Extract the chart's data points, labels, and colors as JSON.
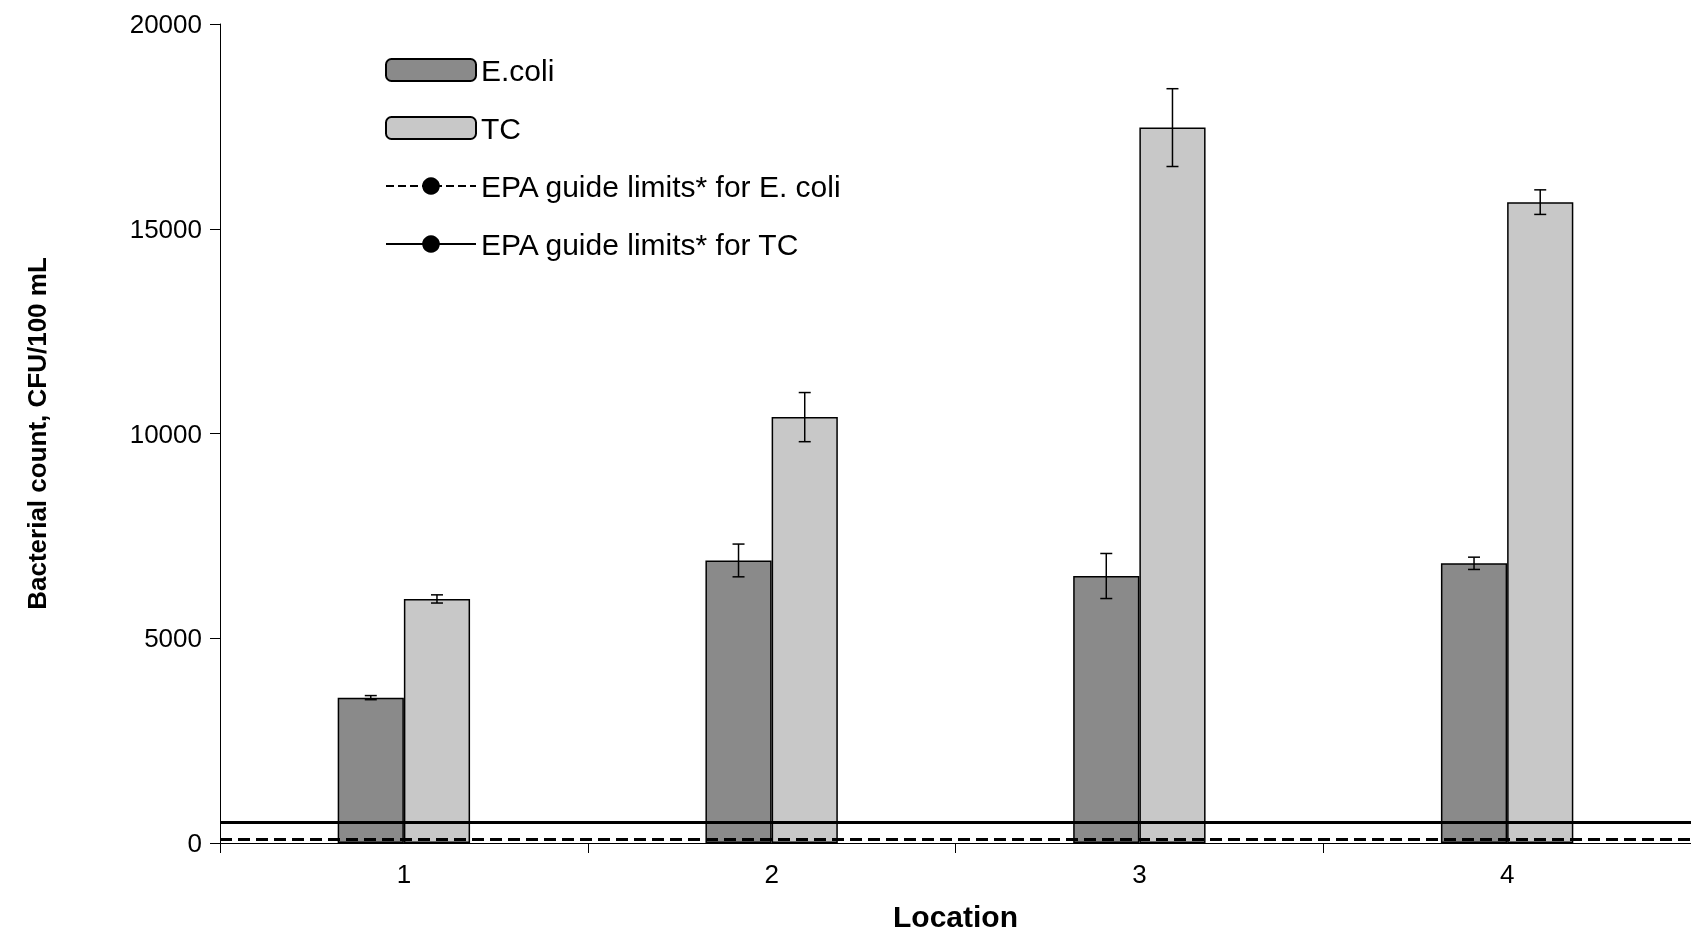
{
  "chart_data": {
    "type": "bar",
    "xlabel": "Location",
    "ylabel": "Bacterial count, CFU/100 mL",
    "categories": [
      "1",
      "2",
      "3",
      "4"
    ],
    "series": [
      {
        "name": "E.coli",
        "color": "#8a8a8a",
        "values": [
          3550,
          6900,
          6520,
          6830
        ],
        "errors": [
          50,
          400,
          550,
          150
        ]
      },
      {
        "name": "TC",
        "color": "#c8c8c8",
        "values": [
          5960,
          10400,
          17470,
          15650
        ],
        "errors": [
          100,
          600,
          950,
          300
        ]
      }
    ],
    "ref_lines": [
      {
        "axis": "y",
        "value": 100,
        "label": "EPA guide limits* for E. coli",
        "color": "#000000",
        "line_style": "dashed"
      },
      {
        "axis": "y",
        "value": 500,
        "label": "EPA guide limits* for TC",
        "color": "#000000",
        "line_style": "solid"
      }
    ],
    "ylim": [
      0,
      20000
    ],
    "yticks": [
      0,
      5000,
      10000,
      15000,
      20000
    ],
    "grid": false,
    "legend": "top left"
  }
}
